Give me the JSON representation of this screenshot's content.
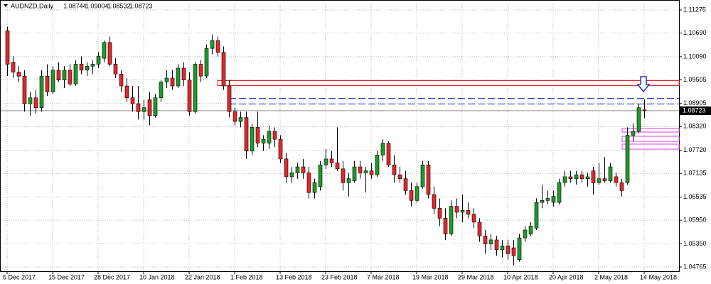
{
  "chart_data": {
    "type": "candlestick",
    "title": "AUDNZD,Daily",
    "categories": [
      "5 Dec 2017",
      null,
      null,
      null,
      null,
      null,
      null,
      null,
      "15 Dec 2017",
      null,
      null,
      null,
      null,
      null,
      null,
      null,
      "28 Dec 2017",
      null,
      null,
      null,
      null,
      null,
      null,
      null,
      "10 Jan 2018",
      null,
      null,
      null,
      null,
      null,
      null,
      null,
      "22 Jan 2018",
      null,
      null,
      null,
      null,
      null,
      null,
      null,
      "1 Feb 2018",
      null,
      null,
      null,
      null,
      null,
      null,
      null,
      "13 Feb 2018",
      null,
      null,
      null,
      null,
      null,
      null,
      null,
      "23 Feb 2018",
      null,
      null,
      null,
      null,
      null,
      null,
      null,
      "7 Mar 2018",
      null,
      null,
      null,
      null,
      null,
      null,
      null,
      "19 Mar 2018",
      null,
      null,
      null,
      null,
      null,
      null,
      null,
      "29 Mar 2018",
      null,
      null,
      null,
      null,
      null,
      null,
      null,
      "10 Apr 2018",
      null,
      null,
      null,
      null,
      null,
      null,
      null,
      "20 Apr 2018",
      null,
      null,
      null,
      null,
      null,
      null,
      null,
      "2 May 2018",
      null,
      null,
      null,
      null,
      null,
      null,
      null,
      "14 May 2018"
    ],
    "open": [
      1.1075,
      1.0995,
      1.097,
      1.096,
      1.089,
      1.0905,
      1.088,
      1.096,
      1.092,
      1.0975,
      1.095,
      1.0975,
      1.094,
      1.099,
      1.0975,
      1.0985,
      1.099,
      1.1005,
      1.1045,
      1.099,
      1.0965,
      1.0935,
      1.0905,
      1.089,
      1.087,
      1.09,
      1.086,
      1.0905,
      1.0945,
      1.0955,
      1.0935,
      1.098,
      1.095,
      1.087,
      1.099,
      1.096,
      1.103,
      1.105,
      1.102,
      1.0935,
      1.087,
      1.0845,
      1.0855,
      1.077,
      1.083,
      1.079,
      1.079,
      1.082,
      1.08,
      1.075,
      1.0705,
      1.0715,
      1.073,
      1.0715,
      1.0665,
      1.068,
      1.0735,
      1.075,
      1.074,
      1.0725,
      1.069,
      1.0695,
      1.073,
      1.0715,
      1.072,
      1.071,
      1.076,
      1.079,
      1.0735,
      1.071,
      1.07,
      1.067,
      1.0645,
      1.068,
      1.0735,
      1.066,
      1.0625,
      1.06,
      1.056,
      1.063,
      1.0615,
      1.062,
      1.061,
      1.059,
      1.0555,
      1.0535,
      1.0545,
      1.052,
      1.053,
      1.0525,
      1.0495,
      1.055,
      1.056,
      1.0575,
      1.064,
      1.0645,
      1.064,
      1.064,
      1.069,
      1.0705,
      1.07,
      1.071,
      1.07,
      1.072,
      1.069,
      1.07,
      1.0695,
      1.0705,
      1.069,
      1.069,
      1.081,
      1.082,
      1.08744
    ],
    "high": [
      1.1085,
      1.101,
      1.0985,
      1.0975,
      1.092,
      1.0925,
      1.0975,
      1.099,
      1.0985,
      1.0995,
      1.0985,
      1.099,
      1.1,
      1.101,
      1.0995,
      1.1,
      1.102,
      1.105,
      1.106,
      1.1005,
      1.0975,
      1.0955,
      1.0935,
      1.0935,
      1.09,
      1.092,
      1.0915,
      1.095,
      1.0975,
      1.0975,
      1.099,
      1.0995,
      1.097,
      1.0995,
      1.1,
      1.104,
      1.1065,
      1.106,
      1.1035,
      1.095,
      1.088,
      1.087,
      1.087,
      1.084,
      1.087,
      1.081,
      1.0835,
      1.083,
      1.081,
      1.0765,
      1.073,
      1.074,
      1.075,
      1.073,
      1.07,
      1.0745,
      1.0775,
      1.077,
      1.083,
      1.0745,
      1.0715,
      1.0745,
      1.0745,
      1.073,
      1.074,
      1.077,
      1.08,
      1.0795,
      1.076,
      1.073,
      1.072,
      1.069,
      1.069,
      1.0745,
      1.0745,
      1.068,
      1.065,
      1.0625,
      1.0645,
      1.065,
      1.066,
      1.064,
      1.0625,
      1.06,
      1.057,
      1.056,
      1.0555,
      1.0545,
      1.0545,
      1.0545,
      1.056,
      1.058,
      1.059,
      1.065,
      1.0685,
      1.067,
      1.067,
      1.07,
      1.072,
      1.072,
      1.072,
      1.072,
      1.0715,
      1.073,
      1.074,
      1.0755,
      1.074,
      1.0715,
      1.07,
      1.083,
      1.084,
      1.089,
      1.09004
    ],
    "low": [
      1.096,
      1.0955,
      1.0945,
      1.087,
      1.086,
      1.0865,
      1.087,
      1.091,
      1.0915,
      1.0945,
      1.093,
      1.0935,
      1.0935,
      1.0965,
      1.096,
      1.0965,
      1.098,
      1.0995,
      1.0985,
      1.0955,
      1.092,
      1.0895,
      1.087,
      1.085,
      1.085,
      1.0835,
      1.0855,
      1.0895,
      1.093,
      1.0925,
      1.093,
      1.0935,
      1.086,
      1.0865,
      1.0945,
      1.0955,
      1.1015,
      1.101,
      1.0925,
      1.0855,
      1.0835,
      1.083,
      1.075,
      1.076,
      1.078,
      1.077,
      1.0775,
      1.078,
      1.074,
      1.069,
      1.069,
      1.07,
      1.07,
      1.065,
      1.065,
      1.067,
      1.0725,
      1.073,
      1.072,
      1.067,
      1.0655,
      1.069,
      1.07,
      1.0665,
      1.07,
      1.0705,
      1.0745,
      1.073,
      1.069,
      1.069,
      1.066,
      1.063,
      1.064,
      1.0675,
      1.065,
      1.061,
      1.058,
      1.0545,
      1.0555,
      1.06,
      1.059,
      1.06,
      1.0575,
      1.054,
      1.051,
      1.052,
      1.0505,
      1.05,
      1.0495,
      1.048,
      1.049,
      1.054,
      1.0555,
      1.057,
      1.0625,
      1.0635,
      1.063,
      1.0635,
      1.068,
      1.069,
      1.0685,
      1.069,
      1.068,
      1.066,
      1.0685,
      1.069,
      1.069,
      1.068,
      1.0655,
      1.0685,
      1.0795,
      1.0815,
      1.08532
    ],
    "close": [
      1.099,
      1.097,
      1.096,
      1.089,
      1.0905,
      1.088,
      1.096,
      1.092,
      1.0975,
      1.095,
      1.0975,
      1.094,
      1.099,
      1.0975,
      1.0985,
      1.099,
      1.101,
      1.1045,
      1.099,
      1.0965,
      1.0935,
      1.0905,
      1.089,
      1.087,
      1.088,
      1.086,
      1.0905,
      1.0945,
      1.0955,
      1.0935,
      1.098,
      1.095,
      1.087,
      1.099,
      1.096,
      1.103,
      1.105,
      1.102,
      1.0935,
      1.087,
      1.0845,
      1.0855,
      1.077,
      1.083,
      1.079,
      1.08,
      1.082,
      1.08,
      1.075,
      1.0705,
      1.0715,
      1.073,
      1.0715,
      1.0665,
      1.069,
      1.0735,
      1.075,
      1.074,
      1.0725,
      1.069,
      1.07,
      1.073,
      1.0715,
      1.072,
      1.071,
      1.076,
      1.079,
      1.0735,
      1.071,
      1.07,
      1.067,
      1.0645,
      1.068,
      1.0735,
      1.066,
      1.0625,
      1.06,
      1.056,
      1.063,
      1.0615,
      1.062,
      1.061,
      1.059,
      1.0555,
      1.0535,
      1.0545,
      1.052,
      1.053,
      1.051,
      1.0505,
      1.055,
      1.057,
      1.058,
      1.064,
      1.0645,
      1.065,
      1.0655,
      1.069,
      1.0705,
      1.07,
      1.071,
      1.07,
      1.0705,
      1.069,
      1.07,
      1.0695,
      1.073,
      1.069,
      1.067,
      1.081,
      1.082,
      1.088,
      1.08723
    ],
    "colors": {
      "up": "#1f9a2a",
      "down": "#e3262b"
    },
    "ylim": [
      1.04657,
      1.11509
    ],
    "yticks": [
      1.11275,
      {
        "value": 1.1069,
        "label": "1.10690"
      },
      {
        "value": 1.1009,
        "label": "1.10090"
      },
      1.09505,
      1.08905,
      {
        "value": 1.0832,
        "label": "1.08320"
      },
      {
        "value": 1.0772,
        "label": "1.07720"
      },
      1.07135,
      1.06535,
      {
        "value": 1.0595,
        "label": "1.05950"
      },
      {
        "value": 1.0535,
        "label": "1.05350"
      },
      1.04765
    ],
    "grid": true
  }
}
